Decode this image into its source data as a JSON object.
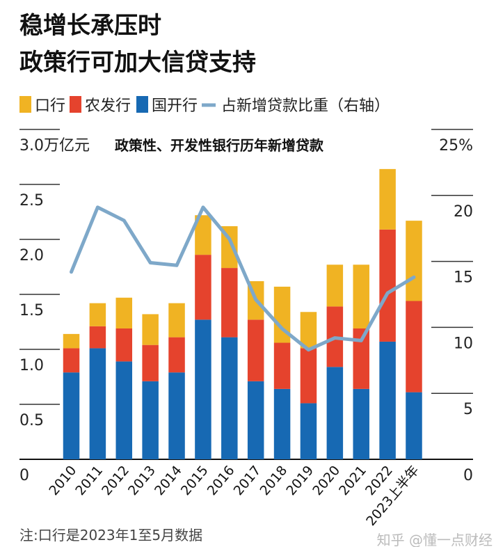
{
  "title_lines": [
    "稳增长承压时",
    "政策行可加大信贷支持"
  ],
  "note": "注:口行是2023年1至5月数据",
  "watermark": "知乎 @懂一点财经",
  "colors": {
    "exim": "#F0B323",
    "adbc": "#E5432D",
    "cdb": "#1769B3",
    "share": "#7EA8C9"
  },
  "chart_data": {
    "type": "bar",
    "stacked": true,
    "subtitle": "政策性、开发性银行历年新增贷款",
    "left_axis": {
      "unit_label": "3.0万亿元",
      "ticks": [
        "0",
        "0.5",
        "1.0",
        "1.5",
        "2.0",
        "2.5"
      ],
      "ylim": [
        0,
        3.0
      ]
    },
    "right_axis": {
      "ticks": [
        "0",
        "5",
        "10",
        "15",
        "20",
        "25%"
      ],
      "ylim": [
        0,
        25
      ]
    },
    "categories": [
      "2010",
      "2011",
      "2012",
      "2013",
      "2014",
      "2015",
      "2016",
      "2017",
      "2018",
      "2019",
      "2020",
      "2021",
      "2022",
      "2023上半年"
    ],
    "legend_position": "top",
    "grid": "tick-stubs",
    "series": [
      {
        "name": "国开行",
        "type": "bar",
        "values": [
          0.79,
          1.01,
          0.89,
          0.71,
          0.79,
          1.27,
          1.11,
          0.71,
          0.64,
          0.51,
          0.84,
          0.64,
          1.07,
          0.61
        ]
      },
      {
        "name": "农发行",
        "type": "bar",
        "values": [
          0.22,
          0.2,
          0.3,
          0.33,
          0.32,
          0.59,
          0.63,
          0.56,
          0.42,
          0.5,
          0.55,
          0.55,
          1.02,
          0.83
        ]
      },
      {
        "name": "口行",
        "type": "bar",
        "values": [
          0.13,
          0.21,
          0.28,
          0.28,
          0.31,
          0.36,
          0.38,
          0.35,
          0.51,
          0.33,
          0.38,
          0.58,
          0.55,
          0.73
        ]
      },
      {
        "name": "占新增贷款比重（右轴）",
        "type": "line",
        "axis": "right",
        "values": [
          14.2,
          19.1,
          18.1,
          14.9,
          14.7,
          19.1,
          16.7,
          12.1,
          9.9,
          8.3,
          9.2,
          9.0,
          12.6,
          13.8
        ]
      }
    ]
  }
}
